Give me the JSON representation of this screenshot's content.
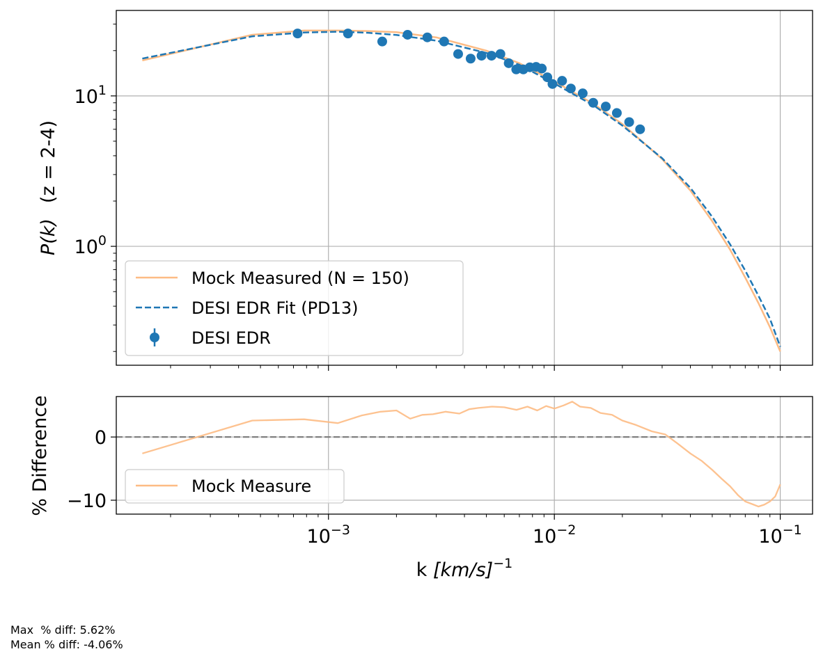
{
  "chart_data": [
    {
      "type": "line",
      "panel": "top",
      "x_scale": "log",
      "y_scale": "log",
      "xlim": [
        0.000115,
        0.139
      ],
      "ylim": [
        0.162,
        37
      ],
      "grid": true,
      "ylabel_main": "P(k)",
      "ylabel_z": "(z = 2-4)",
      "y_ticks": [
        {
          "value": 1,
          "base": "10",
          "exp": "0"
        },
        {
          "value": 10,
          "base": "10",
          "exp": "1"
        }
      ],
      "legend_position": "lower-left",
      "series": [
        {
          "name": "Mock Measured (N = 150)",
          "style": "solid",
          "color": "#fdbb84",
          "x": [
            0.00015,
            0.00046,
            0.00078,
            0.0011,
            0.0015,
            0.002,
            0.003,
            0.005,
            0.007,
            0.01,
            0.015,
            0.02,
            0.03,
            0.04,
            0.05,
            0.06,
            0.07,
            0.08,
            0.09,
            0.1
          ],
          "y": [
            17.2,
            25.5,
            27.2,
            27.2,
            27.0,
            26.5,
            24.5,
            20.0,
            16.5,
            12.5,
            8.8,
            6.5,
            3.8,
            2.35,
            1.47,
            0.95,
            0.62,
            0.42,
            0.29,
            0.2
          ]
        },
        {
          "name": "DESI EDR Fit (PD13)",
          "style": "dashed",
          "color": "#1f77b4",
          "x": [
            0.00015,
            0.00046,
            0.00078,
            0.0011,
            0.0015,
            0.002,
            0.003,
            0.005,
            0.007,
            0.01,
            0.015,
            0.02,
            0.03,
            0.04,
            0.05,
            0.06,
            0.07,
            0.08,
            0.09,
            0.1
          ],
          "y": [
            17.7,
            24.9,
            26.4,
            26.7,
            26.3,
            25.4,
            23.3,
            19.3,
            16.1,
            12.1,
            8.6,
            6.35,
            3.85,
            2.45,
            1.57,
            1.03,
            0.69,
            0.47,
            0.33,
            0.215
          ]
        },
        {
          "name": "DESI EDR",
          "style": "markers",
          "color": "#1f77b4",
          "x": [
            0.00073,
            0.00122,
            0.00173,
            0.00224,
            0.00274,
            0.00325,
            0.00375,
            0.00426,
            0.00476,
            0.00527,
            0.00577,
            0.00628,
            0.00678,
            0.00729,
            0.00779,
            0.0083,
            0.0088,
            0.00931,
            0.00981,
            0.01082,
            0.01183,
            0.01335,
            0.01486,
            0.01689,
            0.01891,
            0.02144,
            0.02396
          ],
          "y": [
            26.0,
            26.0,
            23.0,
            25.5,
            24.5,
            23.0,
            19.0,
            17.7,
            18.5,
            18.5,
            19.0,
            16.5,
            15.0,
            15.0,
            15.5,
            15.6,
            15.2,
            13.3,
            12.0,
            12.6,
            11.2,
            10.4,
            9.0,
            8.5,
            7.7,
            6.7,
            6.0
          ]
        }
      ]
    },
    {
      "type": "line",
      "panel": "bottom",
      "x_scale": "log",
      "y_scale": "linear",
      "xlim": [
        0.000115,
        0.139
      ],
      "ylim": [
        -12.2,
        6.4
      ],
      "grid": true,
      "ylabel": "% Difference",
      "xlabel_prefix": "k ",
      "xlabel_unit": "[km/s]",
      "xlabel_exp": "−1",
      "y_ticks": [
        {
          "value": 0,
          "label": "0"
        },
        {
          "value": -10,
          "label": "−10"
        }
      ],
      "x_ticks": [
        {
          "value": 0.001,
          "base": "10",
          "exp": "−3"
        },
        {
          "value": 0.01,
          "base": "10",
          "exp": "−2"
        },
        {
          "value": 0.1,
          "base": "10",
          "exp": "−1"
        }
      ],
      "reference_line": 0,
      "legend_position": "lower-left",
      "series": [
        {
          "name": "Mock Measure",
          "style": "solid",
          "color": "#fdbb84",
          "x": [
            0.00015,
            0.00046,
            0.00078,
            0.0011,
            0.0014,
            0.0017,
            0.002,
            0.0023,
            0.0026,
            0.0029,
            0.0033,
            0.0038,
            0.0042,
            0.0046,
            0.0053,
            0.006,
            0.0068,
            0.0076,
            0.0084,
            0.0092,
            0.01,
            0.011,
            0.012,
            0.013,
            0.0145,
            0.016,
            0.018,
            0.02,
            0.023,
            0.027,
            0.031,
            0.035,
            0.04,
            0.045,
            0.05,
            0.055,
            0.06,
            0.065,
            0.07,
            0.075,
            0.08,
            0.085,
            0.09,
            0.095,
            0.1
          ],
          "y": [
            -2.6,
            2.6,
            2.8,
            2.2,
            3.4,
            4.0,
            4.2,
            2.9,
            3.5,
            3.6,
            4.0,
            3.7,
            4.4,
            4.6,
            4.8,
            4.7,
            4.3,
            4.8,
            4.2,
            4.9,
            4.5,
            5.0,
            5.6,
            4.8,
            4.6,
            3.8,
            3.5,
            2.6,
            1.9,
            0.9,
            0.4,
            -1.0,
            -2.6,
            -3.8,
            -5.2,
            -6.6,
            -7.8,
            -9.2,
            -10.2,
            -10.6,
            -11.0,
            -10.7,
            -10.2,
            -9.4,
            -7.5
          ]
        }
      ]
    }
  ],
  "stats": {
    "max_line": "Max  % diff: 5.62%",
    "mean_line": "Mean % diff: -4.06%"
  }
}
